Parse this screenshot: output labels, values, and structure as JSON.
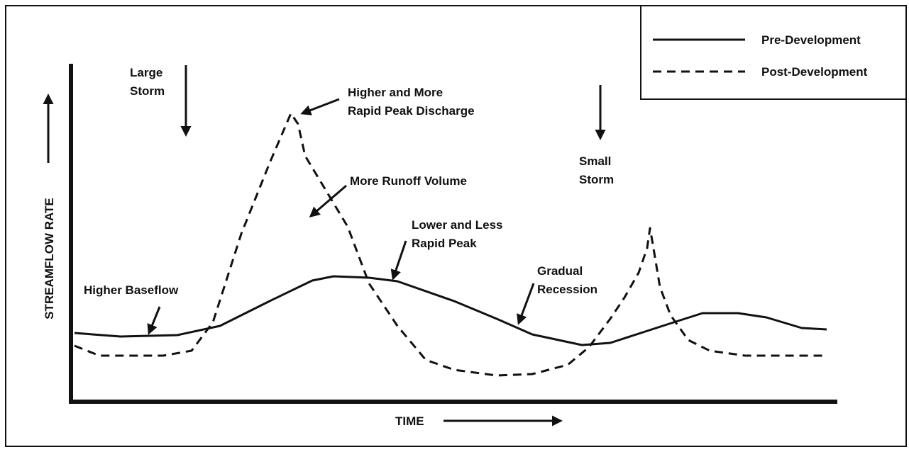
{
  "legend": {
    "items": [
      "Pre-Development",
      "Post-Development"
    ]
  },
  "axes": {
    "y_label": "STREAMFLOW RATE",
    "x_label": "TIME"
  },
  "annotations": {
    "large_storm": [
      "Large",
      "Storm"
    ],
    "higher_peak": [
      "Higher and More",
      "Rapid Peak Discharge"
    ],
    "more_runoff": [
      "More Runoff Volume"
    ],
    "small_storm": [
      "Small",
      "Storm"
    ],
    "lower_peak": [
      "Lower and Less",
      "Rapid Peak"
    ],
    "gradual_recession": [
      "Gradual",
      "Recession"
    ],
    "higher_baseflow": [
      "Higher Baseflow"
    ]
  }
}
